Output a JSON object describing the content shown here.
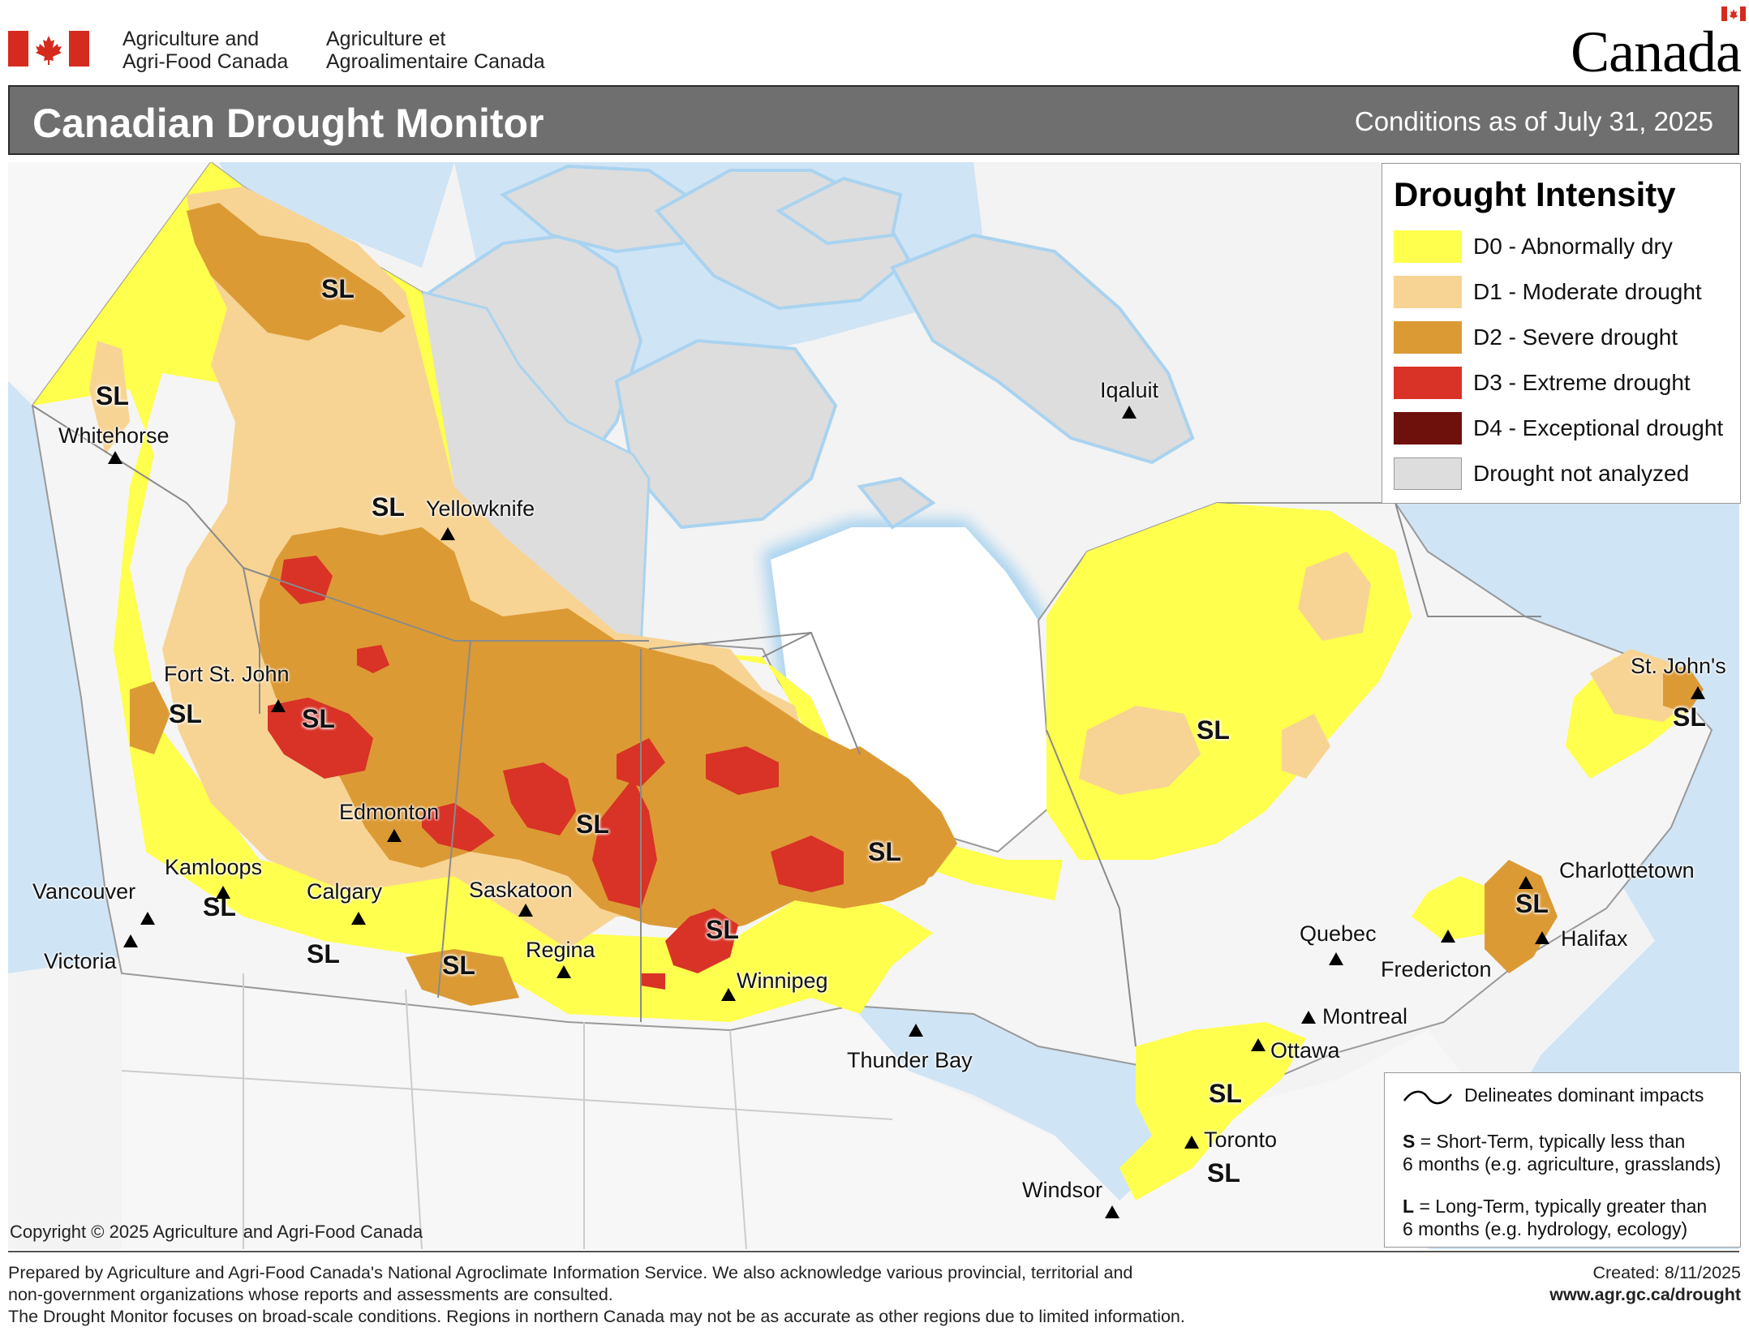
{
  "header": {
    "dept_en_1": "Agriculture and",
    "dept_en_2": "Agri-Food Canada",
    "dept_fr_1": "Agriculture et",
    "dept_fr_2": "Agroalimentaire Canada",
    "wordmark": "Canada"
  },
  "title": {
    "main": "Canadian Drought Monitor",
    "conditions": "Conditions as of July 31, 2025"
  },
  "legend": {
    "title": "Drought Intensity",
    "items": [
      {
        "label": "D0 - Abnormally dry",
        "color": "#ffff4d"
      },
      {
        "label": "D1 - Moderate drought",
        "color": "#f7d494"
      },
      {
        "label": "D2 - Severe drought",
        "color": "#dc9a35"
      },
      {
        "label": "D3 - Extreme drought",
        "color": "#d93226"
      },
      {
        "label": "D4 - Exceptional drought",
        "color": "#6e110c"
      },
      {
        "label": "Drought not analyzed",
        "color": "#dddddd"
      }
    ]
  },
  "impacts_note": {
    "line": "Delineates dominant impacts",
    "s_key": "S",
    "s_text_1": " = Short-Term, typically less than",
    "s_text_2": "6 months (e.g. agriculture, grasslands)",
    "l_key": "L",
    "l_text_1": " = Long-Term, typically greater  than",
    "l_text_2": "6 months (e.g. hydrology, ecology)"
  },
  "cities": [
    {
      "name": "Whitehorse"
    },
    {
      "name": "Yellowknife"
    },
    {
      "name": "Iqaluit"
    },
    {
      "name": "Fort St. John"
    },
    {
      "name": "Edmonton"
    },
    {
      "name": "Kamloops"
    },
    {
      "name": "Vancouver"
    },
    {
      "name": "Victoria"
    },
    {
      "name": "Calgary"
    },
    {
      "name": "Saskatoon"
    },
    {
      "name": "Regina"
    },
    {
      "name": "Winnipeg"
    },
    {
      "name": "Thunder Bay"
    },
    {
      "name": "St. John's"
    },
    {
      "name": "Charlottetown"
    },
    {
      "name": "Halifax"
    },
    {
      "name": "Fredericton"
    },
    {
      "name": "Quebec"
    },
    {
      "name": "Montreal"
    },
    {
      "name": "Ottawa"
    },
    {
      "name": "Toronto"
    },
    {
      "name": "Windsor"
    }
  ],
  "impact_label": "SL",
  "copyright": "Copyright © 2025 Agriculture and Agri-Food Canada",
  "footer": {
    "line1": "Prepared by Agriculture and Agri-Food Canada's National Agroclimate Information Service.  We also acknowledge various provincial, territorial and",
    "line2": "non-government organizations whose reports and assessments are consulted.",
    "line3": "The Drought Monitor focuses on broad-scale conditions.  Regions in northern Canada may not be as accurate as other regions due to limited information.",
    "created": "Created: 8/11/2025",
    "url": "www.agr.gc.ca/drought"
  },
  "colors": {
    "title_bar": "#6f6f6f",
    "water": "#cfe4f5",
    "land_outside": "#f3f3f3",
    "flag_red": "#d52b1e"
  }
}
